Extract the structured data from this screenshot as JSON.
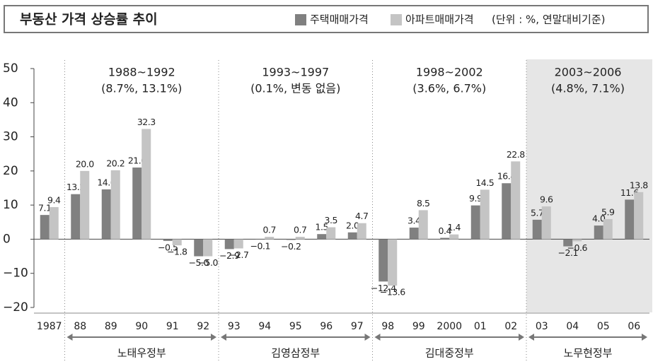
{
  "chart_data": {
    "type": "bar",
    "title": "부동산 가격 상승률 추이",
    "unit_note": "(단위 : %, 연말대비기준)",
    "categories": [
      "1987",
      "88",
      "89",
      "90",
      "91",
      "92",
      "93",
      "94",
      "95",
      "96",
      "97",
      "98",
      "99",
      "2000",
      "01",
      "02",
      "03",
      "04",
      "05",
      "06"
    ],
    "series": [
      {
        "name": "주택매매가격",
        "color": "#808080",
        "values": [
          7.1,
          13.2,
          14.6,
          21,
          -0.5,
          -5,
          -2.9,
          -0.1,
          -0.2,
          1.5,
          2,
          -12.4,
          3.4,
          0.4,
          9.9,
          16.4,
          5.7,
          -2.1,
          4,
          11.6
        ],
        "value_labels": [
          "7.1",
          "13.2",
          "14.6",
          "21.0",
          "−0.5",
          "−5.0",
          "−2.9",
          "−0.1",
          "−0.2",
          "1.5",
          "2.0",
          "−12.4",
          "3.4",
          "0.4",
          "9.9",
          "16.4",
          "5.7",
          "−2.1",
          "4.0",
          "11.6"
        ]
      },
      {
        "name": "아파트매매가격",
        "color": "#c4c4c4",
        "values": [
          9.4,
          20,
          20.2,
          32.3,
          -1.8,
          -5,
          -2.7,
          0.7,
          0.7,
          3.5,
          4.7,
          -13.6,
          8.5,
          1.4,
          14.5,
          22.8,
          9.6,
          -0.6,
          5.9,
          13.8
        ],
        "value_labels": [
          "9.4",
          "20.0",
          "20.2",
          "32.3",
          "−1.8",
          "−5.0",
          "−2.7",
          "0.7",
          "0.7",
          "3.5",
          "4.7",
          "−13.6",
          "8.5",
          "1.4",
          "14.5",
          "22.8",
          "9.6",
          "−0.6",
          "5.9",
          "13.8"
        ]
      }
    ],
    "ylim": [
      -20,
      50
    ],
    "yticks": [
      {
        "value": -20,
        "label": "−20"
      },
      {
        "value": -10,
        "label": "−10"
      },
      0,
      10,
      20,
      30,
      40,
      50
    ],
    "periods": [
      {
        "range": "1988~1992",
        "average": "(8.7%, 13.1%)",
        "government": "노태우정부"
      },
      {
        "range": "1993~1997",
        "average": "(0.1%, 변동 없음)",
        "government": "김영삼정부"
      },
      {
        "range": "1998~2002",
        "average": "(3.6%, 6.7%)",
        "government": "김대중정부"
      },
      {
        "range": "2003~2006",
        "average": "(4.8%, 7.1%)",
        "government": "노무현정부"
      }
    ]
  }
}
